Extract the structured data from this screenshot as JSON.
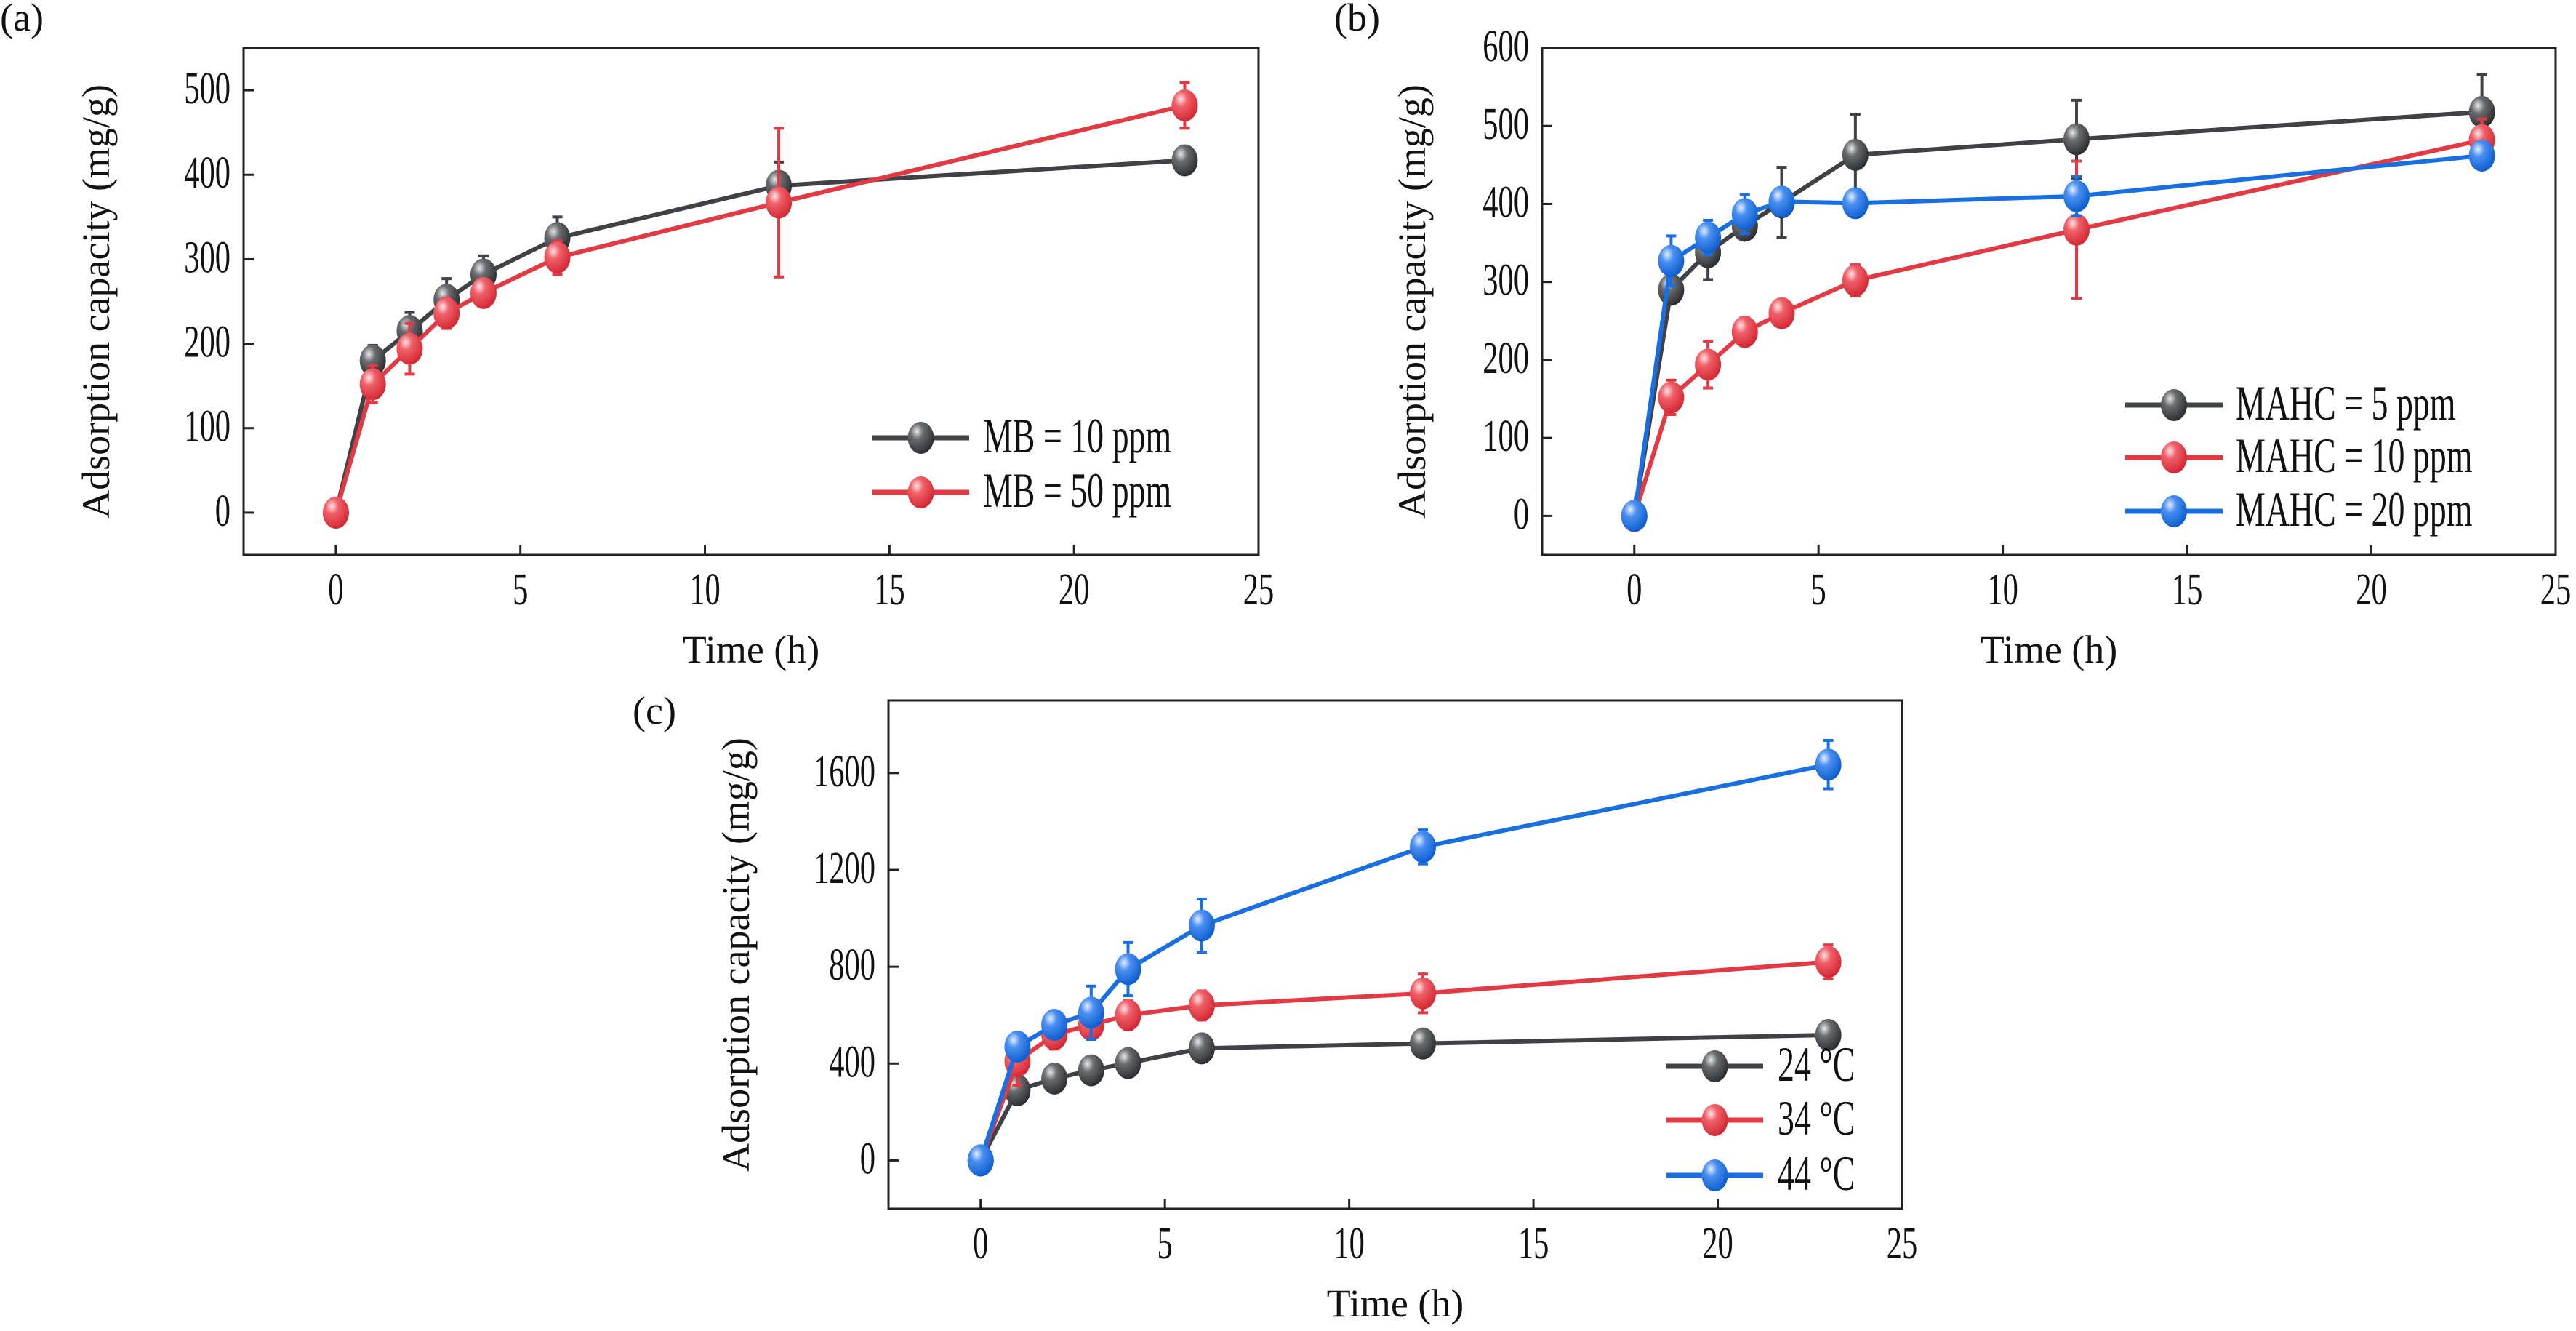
{
  "colors": {
    "dark": "#3f4146",
    "red": "#e23a44",
    "blue": "#1a6fe0"
  },
  "chart_data": [
    {
      "panel_label": "(a)",
      "type": "line",
      "xlabel": "Time (h)",
      "ylabel": "Adsorption capacity (mg/g)",
      "xlim": [
        -2.5,
        25
      ],
      "ylim": [
        -50,
        550
      ],
      "xticks": [
        0,
        5,
        10,
        15,
        20,
        25
      ],
      "yticks": [
        0,
        100,
        200,
        300,
        400,
        500
      ],
      "grid": false,
      "legend": "bottom-right",
      "x": [
        0,
        1,
        2,
        3,
        4,
        6,
        12,
        23
      ],
      "series": [
        {
          "name": "MB = 10 ppm",
          "color": "dark",
          "values": [
            0,
            180,
            215,
            252,
            282,
            325,
            387,
            417
          ],
          "errors": [
            0,
            18,
            22,
            25,
            22,
            25,
            28,
            4
          ]
        },
        {
          "name": "MB = 50 ppm",
          "color": "red",
          "values": [
            0,
            152,
            194,
            236,
            260,
            302,
            367,
            482
          ],
          "errors": [
            0,
            22,
            30,
            18,
            8,
            20,
            88,
            27
          ]
        }
      ]
    },
    {
      "panel_label": "(b)",
      "type": "line",
      "xlabel": "Time (h)",
      "ylabel": "Adsorption capacity (mg/g)",
      "xlim": [
        -2.5,
        25
      ],
      "ylim": [
        -50,
        600
      ],
      "xticks": [
        0,
        5,
        10,
        15,
        20,
        25
      ],
      "yticks": [
        0,
        100,
        200,
        300,
        400,
        500,
        600
      ],
      "grid": false,
      "legend": "bottom-right",
      "x": [
        0,
        1,
        2,
        3,
        4,
        6,
        12,
        23
      ],
      "series": [
        {
          "name": "MAHC = 5 ppm",
          "color": "dark",
          "values": [
            0,
            290,
            338,
            372,
            402,
            463,
            483,
            518
          ],
          "errors": [
            0,
            5,
            35,
            15,
            45,
            52,
            50,
            48
          ]
        },
        {
          "name": "MAHC = 10 ppm",
          "color": "red",
          "values": [
            0,
            152,
            194,
            236,
            260,
            302,
            367,
            482
          ],
          "errors": [
            0,
            22,
            30,
            18,
            8,
            20,
            88,
            27
          ]
        },
        {
          "name": "MAHC = 20 ppm",
          "color": "blue",
          "values": [
            0,
            327,
            357,
            387,
            403,
            401,
            410,
            462
          ],
          "errors": [
            0,
            32,
            22,
            25,
            5,
            10,
            25,
            15
          ]
        }
      ]
    },
    {
      "panel_label": "(c)",
      "type": "line",
      "xlabel": "Time (h)",
      "ylabel": "Adsorption capacity (mg/g)",
      "xlim": [
        -2.5,
        25
      ],
      "ylim": [
        -200,
        1900
      ],
      "xticks": [
        0,
        5,
        10,
        15,
        20,
        25
      ],
      "yticks": [
        0,
        400,
        800,
        1200,
        1600
      ],
      "grid": false,
      "legend": "bottom-right",
      "x": [
        0,
        1,
        2,
        3,
        4,
        6,
        12,
        23
      ],
      "series": [
        {
          "name": "24 °C",
          "color": "dark",
          "values": [
            0,
            290,
            338,
            372,
            402,
            463,
            483,
            518
          ],
          "errors": [
            0,
            5,
            10,
            10,
            10,
            15,
            15,
            15
          ]
        },
        {
          "name": "34 °C",
          "color": "red",
          "values": [
            0,
            410,
            520,
            560,
            600,
            640,
            690,
            820
          ],
          "errors": [
            0,
            100,
            60,
            60,
            60,
            60,
            80,
            70
          ]
        },
        {
          "name": "44 °C",
          "color": "blue",
          "values": [
            0,
            470,
            560,
            610,
            790,
            970,
            1295,
            1635
          ],
          "errors": [
            0,
            50,
            30,
            110,
            110,
            110,
            70,
            100
          ]
        }
      ]
    }
  ]
}
